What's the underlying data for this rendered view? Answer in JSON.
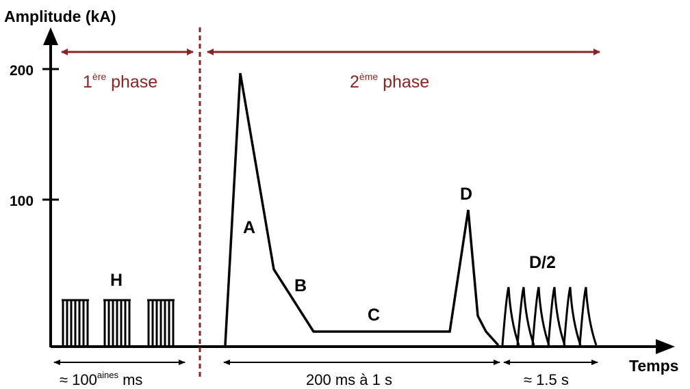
{
  "y_axis": {
    "title": "Amplitude (kA)",
    "tick_labels": [
      "200",
      "100"
    ]
  },
  "x_axis": {
    "title": "Temps"
  },
  "phases": {
    "first": {
      "base": "1",
      "sup": "ère",
      "rest": " phase"
    },
    "second": {
      "base": "2",
      "sup": "ème",
      "rest": " phase"
    }
  },
  "segment_labels": {
    "H": "H",
    "A": "A",
    "B": "B",
    "C": "C",
    "D": "D",
    "D2": "D/2"
  },
  "durations": {
    "first": {
      "prefix": "≈ 100",
      "sup": "aines",
      "suffix": " ms"
    },
    "second": "200 ms à 1 s",
    "third": "≈ 1.5 s"
  },
  "colors": {
    "phase": "#8b2323",
    "curve": "#000000"
  }
}
